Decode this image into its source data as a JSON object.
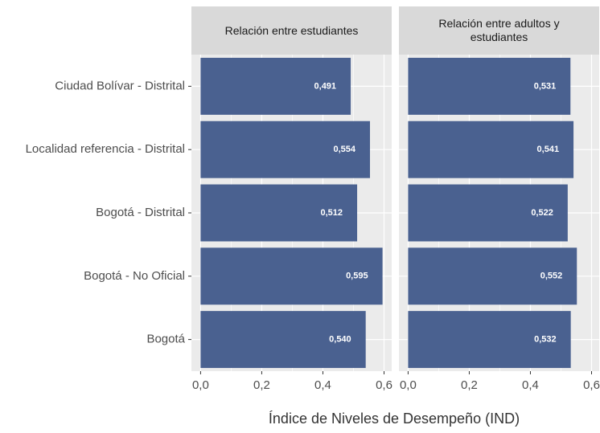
{
  "chart_data": {
    "type": "bar",
    "orientation": "horizontal",
    "facet": true,
    "x_label": "Índice de Niveles de Desempeño (IND)",
    "categories": [
      "Ciudad Bolívar - Distrital",
      "Localidad referencia - Distrital",
      "Bogotá - Distrital",
      "Bogotá - No Oficial",
      "Bogotá"
    ],
    "series": [
      {
        "name": "Relación entre estudiantes",
        "color": "#4a6190",
        "values": [
          0.491,
          0.554,
          0.512,
          0.595,
          0.54
        ],
        "value_labels": [
          "0,491",
          "0,554",
          "0,512",
          "0,595",
          "0,540"
        ]
      },
      {
        "name": "Relación entre adultos y estudiantes",
        "color": "#4a6190",
        "values": [
          0.531,
          0.541,
          0.522,
          0.552,
          0.532
        ],
        "value_labels": [
          "0,531",
          "0,541",
          "0,522",
          "0,552",
          "0,532"
        ]
      }
    ],
    "xlim": [
      -0.03,
      0.625
    ],
    "xticks": [
      {
        "value": 0,
        "label": "0,0"
      },
      {
        "value": 0.2,
        "label": "0,2"
      },
      {
        "value": 0.4,
        "label": "0,4"
      },
      {
        "value": 0.6,
        "label": "0,6"
      }
    ],
    "xminorticks": [
      0.1,
      0.3,
      0.5
    ],
    "grid": true
  }
}
